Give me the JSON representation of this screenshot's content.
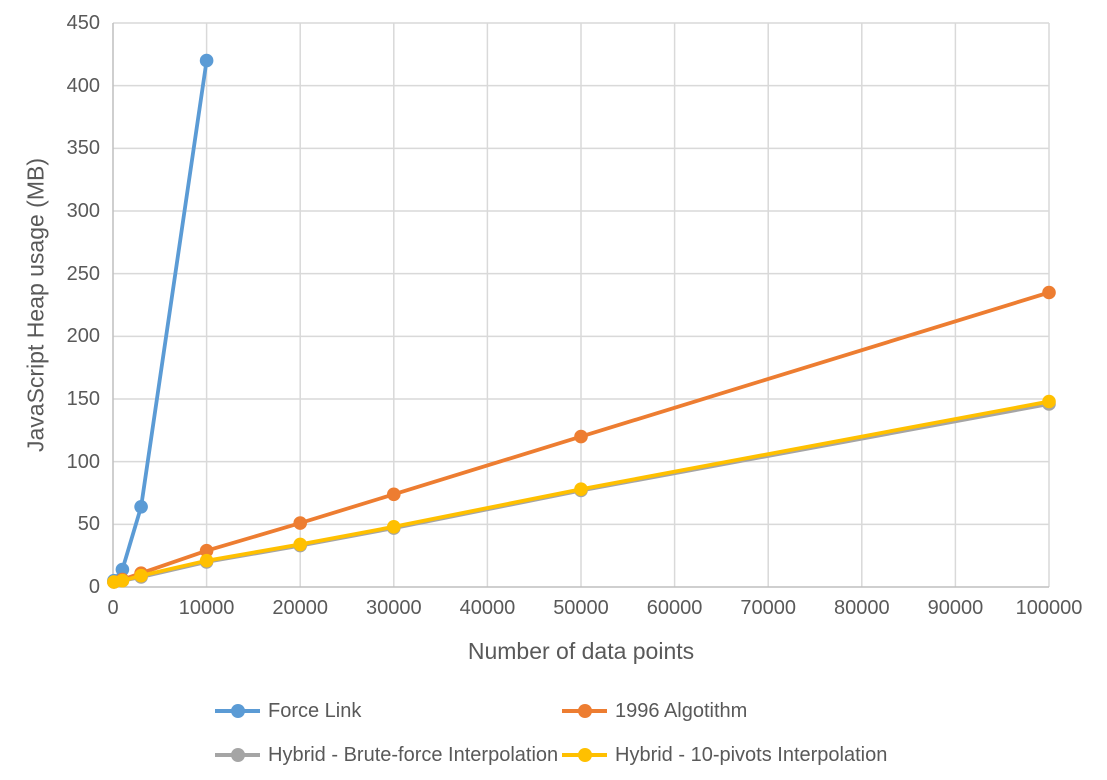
{
  "chart_data": {
    "type": "line",
    "title": "",
    "xlabel": "Number of data points",
    "ylabel": "JavaScript Heap usage (MB)",
    "xlim": [
      0,
      100000
    ],
    "ylim": [
      0,
      450
    ],
    "grid": true,
    "legend_position": "bottom",
    "x_ticks": [
      0,
      10000,
      20000,
      30000,
      40000,
      50000,
      60000,
      70000,
      80000,
      90000,
      100000
    ],
    "x_tick_labels": [
      "0",
      "10000",
      "20000",
      "30000",
      "40000",
      "50000",
      "60000",
      "70000",
      "80000",
      "90000",
      "100000"
    ],
    "y_ticks": [
      0,
      50,
      100,
      150,
      200,
      250,
      300,
      350,
      400,
      450
    ],
    "y_tick_labels": [
      "0",
      "50",
      "100",
      "150",
      "200",
      "250",
      "300",
      "350",
      "400",
      "450"
    ],
    "series": [
      {
        "name": "Force Link",
        "color": "#5B9BD5",
        "x": [
          100,
          1000,
          3000,
          10000
        ],
        "values": [
          5,
          14,
          64,
          420
        ]
      },
      {
        "name": "1996 Algotithm",
        "color": "#ED7D31",
        "x": [
          100,
          1000,
          3000,
          10000,
          20000,
          30000,
          50000,
          100000
        ],
        "values": [
          4,
          6,
          11,
          29,
          51,
          74,
          120,
          235
        ]
      },
      {
        "name": "Hybrid - Brute-force Interpolation",
        "color": "#A5A5A5",
        "x": [
          100,
          1000,
          3000,
          10000,
          20000,
          30000,
          50000,
          100000
        ],
        "values": [
          4,
          5,
          8,
          20,
          33,
          47,
          77,
          146
        ]
      },
      {
        "name": "Hybrid - 10-pivots Interpolation",
        "color": "#FFC000",
        "x": [
          100,
          1000,
          3000,
          10000,
          20000,
          30000,
          50000,
          100000
        ],
        "values": [
          4,
          5,
          9,
          21,
          34,
          48,
          78,
          148
        ]
      }
    ],
    "colors": {
      "gridline": "#D9D9D9",
      "axis_line": "#BFBFBF",
      "text": "#595959",
      "background": "#FFFFFF"
    }
  }
}
